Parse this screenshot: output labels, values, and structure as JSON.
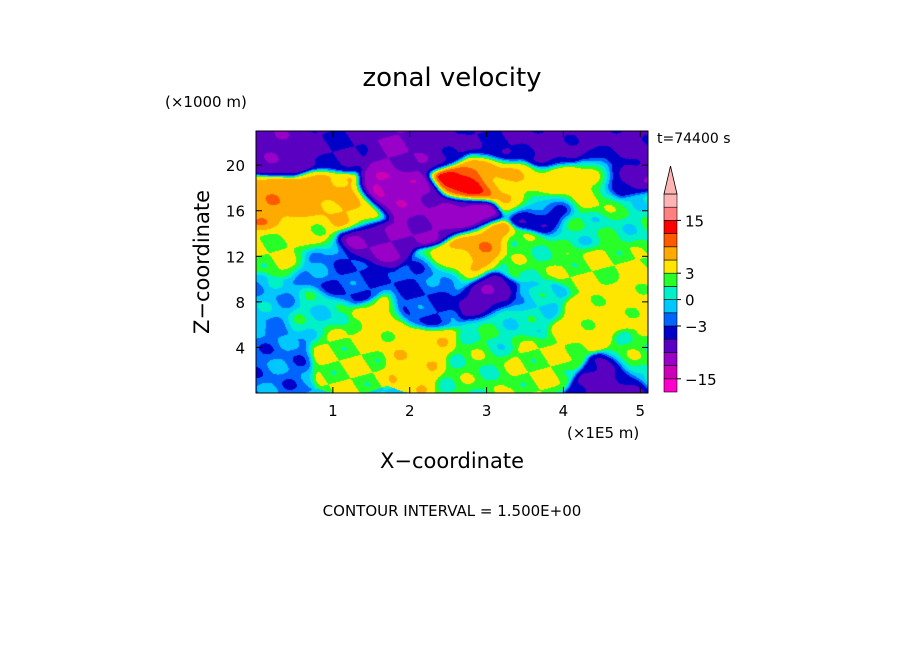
{
  "chart_data": {
    "type": "heatmap",
    "title": "zonal velocity",
    "xlabel": "X−coordinate",
    "ylabel": "Z−coordinate",
    "x_unit": "(×1E5 m)",
    "y_unit": "(×1000 m)",
    "time_label": "t=74400 s",
    "footer": "CONTOUR INTERVAL = 1.500E+00",
    "x_ticks": [
      "1",
      "2",
      "3",
      "4",
      "5"
    ],
    "y_ticks": [
      "4",
      "8",
      "12",
      "16",
      "20"
    ],
    "xlim": [
      0,
      5.1
    ],
    "ylim": [
      0,
      23
    ],
    "colorbar": {
      "tick_labels": [
        "15",
        "3",
        "0",
        "−3",
        "−15"
      ],
      "levels": [
        -18,
        -15,
        -12,
        -9,
        -6,
        -3,
        -1.5,
        0,
        1.5,
        3,
        6,
        9,
        12,
        15,
        18
      ],
      "colors": [
        "#ff00cc",
        "#cc00b4",
        "#9900c8",
        "#5a00c0",
        "#0000c8",
        "#0064ff",
        "#00c8ff",
        "#00f0c8",
        "#28ff28",
        "#ffe600",
        "#ffaa00",
        "#ff5a00",
        "#ff0000",
        "#ff8080",
        "#ffb4b4"
      ]
    },
    "features": [
      {
        "x": 0.3,
        "z": 16.5,
        "value": 8
      },
      {
        "x": 0.9,
        "z": 17.5,
        "value": 7
      },
      {
        "x": 1.3,
        "z": 16,
        "value": 6
      },
      {
        "x": 0.4,
        "z": 12.5,
        "value": 3
      },
      {
        "x": 0.6,
        "z": 14,
        "value": 4
      },
      {
        "x": 0.4,
        "z": 21.5,
        "value": -8
      },
      {
        "x": 1.0,
        "z": 21.5,
        "value": -6
      },
      {
        "x": 1.9,
        "z": 21,
        "value": -9
      },
      {
        "x": 2.4,
        "z": 21.5,
        "value": -7
      },
      {
        "x": 3.1,
        "z": 21.8,
        "value": -6
      },
      {
        "x": 3.9,
        "z": 21.5,
        "value": -7
      },
      {
        "x": 4.6,
        "z": 21.2,
        "value": -7
      },
      {
        "x": 1.75,
        "z": 17.5,
        "value": -12
      },
      {
        "x": 2.1,
        "z": 17,
        "value": -10
      },
      {
        "x": 2.3,
        "z": 15.5,
        "value": -9
      },
      {
        "x": 1.5,
        "z": 13.5,
        "value": -9
      },
      {
        "x": 2.65,
        "z": 15.7,
        "value": -11
      },
      {
        "x": 2.7,
        "z": 18.5,
        "value": 14
      },
      {
        "x": 3.0,
        "z": 19.5,
        "value": 7
      },
      {
        "x": 2.9,
        "z": 13,
        "value": 8
      },
      {
        "x": 2.6,
        "z": 11,
        "value": 5
      },
      {
        "x": 2.4,
        "z": 10,
        "value": -3
      },
      {
        "x": 1.2,
        "z": 10,
        "value": -3
      },
      {
        "x": 0.9,
        "z": 11.5,
        "value": -2
      },
      {
        "x": 0.2,
        "z": 8,
        "value": -1
      },
      {
        "x": 0.2,
        "z": 3.5,
        "value": -2
      },
      {
        "x": 0.8,
        "z": 7,
        "value": 0.5
      },
      {
        "x": 1.2,
        "z": 4,
        "value": 3
      },
      {
        "x": 1.6,
        "z": 6,
        "value": 4
      },
      {
        "x": 2.2,
        "z": 4,
        "value": 5
      },
      {
        "x": 2.8,
        "z": 3,
        "value": 2
      },
      {
        "x": 3.2,
        "z": 6,
        "value": 1
      },
      {
        "x": 2.2,
        "z": 7.5,
        "value": -3
      },
      {
        "x": 3.0,
        "z": 8.5,
        "value": -8
      },
      {
        "x": 3.6,
        "z": 7.5,
        "value": 0
      },
      {
        "x": 3.8,
        "z": 3,
        "value": 3
      },
      {
        "x": 4.2,
        "z": 6,
        "value": 4
      },
      {
        "x": 4.6,
        "z": 1,
        "value": -7
      },
      {
        "x": 5.0,
        "z": 3,
        "value": 2
      },
      {
        "x": 4.8,
        "z": 8.5,
        "value": 4
      },
      {
        "x": 4.4,
        "z": 11,
        "value": 3
      },
      {
        "x": 3.5,
        "z": 12,
        "value": 2
      },
      {
        "x": 4.2,
        "z": 14.5,
        "value": 1
      },
      {
        "x": 3.8,
        "z": 17,
        "value": 4
      },
      {
        "x": 3.5,
        "z": 18,
        "value": 5
      },
      {
        "x": 4.0,
        "z": 18.5,
        "value": 5
      },
      {
        "x": 3.8,
        "z": 16.3,
        "value": -7
      },
      {
        "x": 4.35,
        "z": 17.2,
        "value": 3
      },
      {
        "x": 4.8,
        "z": 19,
        "value": -8
      },
      {
        "x": 4.5,
        "z": 19.5,
        "value": 3
      },
      {
        "x": 5.0,
        "z": 16,
        "value": 1
      }
    ]
  }
}
